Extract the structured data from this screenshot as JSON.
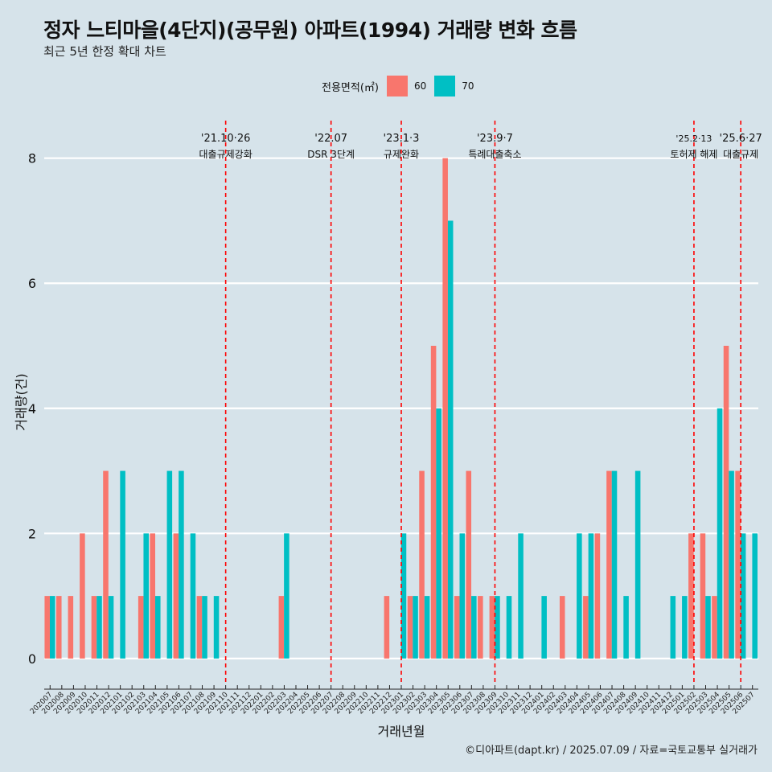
{
  "title": "정자 느티마을(4단지)(공무원) 아파트(1994) 거래량 변화 흐름",
  "subtitle": "최근 5년 한정 확대 차트",
  "legend": {
    "title": "전용면적(㎡)",
    "items": [
      {
        "label": "60",
        "color": "#F8766D"
      },
      {
        "label": "70",
        "color": "#00BFC4"
      }
    ]
  },
  "caption": "©디아파트(dapt.kr) / 2025.07.09 / 자료=국토교통부 실거래가",
  "chart_data": {
    "type": "bar",
    "title": "정자 느티마을(4단지)(공무원) 아파트(1994) 거래량 변화 흐름",
    "xlabel": "거래년월",
    "ylabel": "거래량(건)",
    "ylim": [
      -0.4,
      8.6
    ],
    "yticks": [
      0,
      2,
      4,
      6,
      8
    ],
    "categories": [
      "202007",
      "202008",
      "202009",
      "202010",
      "202011",
      "202012",
      "202101",
      "202102",
      "202103",
      "202104",
      "202105",
      "202106",
      "202107",
      "202108",
      "202109",
      "202110",
      "202111",
      "202112",
      "202201",
      "202202",
      "202203",
      "202204",
      "202205",
      "202206",
      "202207",
      "202208",
      "202209",
      "202210",
      "202211",
      "202212",
      "202301",
      "202302",
      "202303",
      "202304",
      "202305",
      "202306",
      "202307",
      "202308",
      "202309",
      "202310",
      "202311",
      "202312",
      "202401",
      "202402",
      "202403",
      "202404",
      "202405",
      "202406",
      "202407",
      "202408",
      "202409",
      "202410",
      "202411",
      "202412",
      "202501",
      "202502",
      "202503",
      "202504",
      "202505",
      "202506",
      "202507"
    ],
    "series": [
      {
        "name": "60",
        "color": "#F8766D",
        "values": [
          1,
          1,
          1,
          2,
          1,
          3,
          0,
          0,
          1,
          2,
          0,
          2,
          0,
          1,
          0,
          0,
          0,
          0,
          0,
          0,
          1,
          0,
          0,
          0,
          0,
          0,
          0,
          0,
          0,
          1,
          0,
          1,
          3,
          5,
          8,
          1,
          3,
          1,
          1,
          0,
          0,
          0,
          0,
          0,
          1,
          0,
          1,
          2,
          3,
          0,
          0,
          0,
          0,
          0,
          0,
          2,
          2,
          1,
          5,
          3,
          0
        ]
      },
      {
        "name": "70",
        "color": "#00BFC4",
        "values": [
          1,
          0,
          0,
          0,
          1,
          1,
          3,
          0,
          2,
          1,
          3,
          3,
          2,
          1,
          1,
          0,
          0,
          0,
          0,
          0,
          2,
          0,
          0,
          0,
          0,
          0,
          0,
          0,
          0,
          0,
          2,
          1,
          1,
          4,
          7,
          2,
          1,
          0,
          1,
          1,
          2,
          0,
          1,
          0,
          0,
          2,
          2,
          0,
          3,
          1,
          3,
          0,
          0,
          1,
          1,
          0,
          1,
          4,
          3,
          2,
          2
        ]
      }
    ],
    "annotations": [
      {
        "x": "202110",
        "date": "'21.10·26",
        "label": "대출규제강화"
      },
      {
        "x": "202207",
        "date": "'22.07",
        "label": "DSR 3단계"
      },
      {
        "x": "202301",
        "date": "'23.1·3",
        "label": "규제완화"
      },
      {
        "x": "202309",
        "date": "'23.9·7",
        "label": "특례대출축소"
      },
      {
        "x": "202502",
        "date": "'25.2·13",
        "label": "토허제 해제"
      },
      {
        "x": "202506",
        "date": "'25.6·27",
        "label": "대출규제"
      }
    ]
  }
}
